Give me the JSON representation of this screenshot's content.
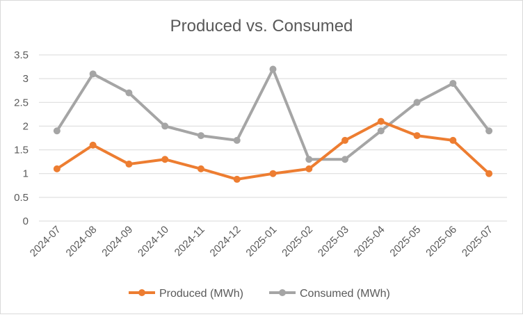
{
  "chart_data": {
    "type": "line",
    "title": "Produced vs. Consumed",
    "xlabel": "",
    "ylabel": "",
    "ylim": [
      0,
      3.5
    ],
    "yticks": [
      "0",
      "0.5",
      "1",
      "1.5",
      "2",
      "2.5",
      "3",
      "3.5"
    ],
    "ytick_values": [
      0,
      0.5,
      1,
      1.5,
      2,
      2.5,
      3,
      3.5
    ],
    "grid": true,
    "legend_position": "bottom",
    "categories": [
      "2024-07",
      "2024-08",
      "2024-09",
      "2024-10",
      "2024-11",
      "2024-12",
      "2025-01",
      "2025-02",
      "2025-03",
      "2025-04",
      "2025-05",
      "2025-06",
      "2025-07"
    ],
    "series": [
      {
        "name": "Produced (MWh)",
        "color": "#ed7d31",
        "values": [
          1.1,
          1.6,
          1.2,
          1.3,
          1.1,
          0.88,
          1.0,
          1.1,
          1.7,
          2.1,
          1.8,
          1.7,
          1.0
        ]
      },
      {
        "name": "Consumed (MWh)",
        "color": "#a5a5a5",
        "values": [
          1.9,
          3.1,
          2.7,
          2.0,
          1.8,
          1.7,
          3.2,
          1.3,
          1.3,
          1.9,
          2.5,
          2.9,
          1.9
        ]
      }
    ]
  }
}
